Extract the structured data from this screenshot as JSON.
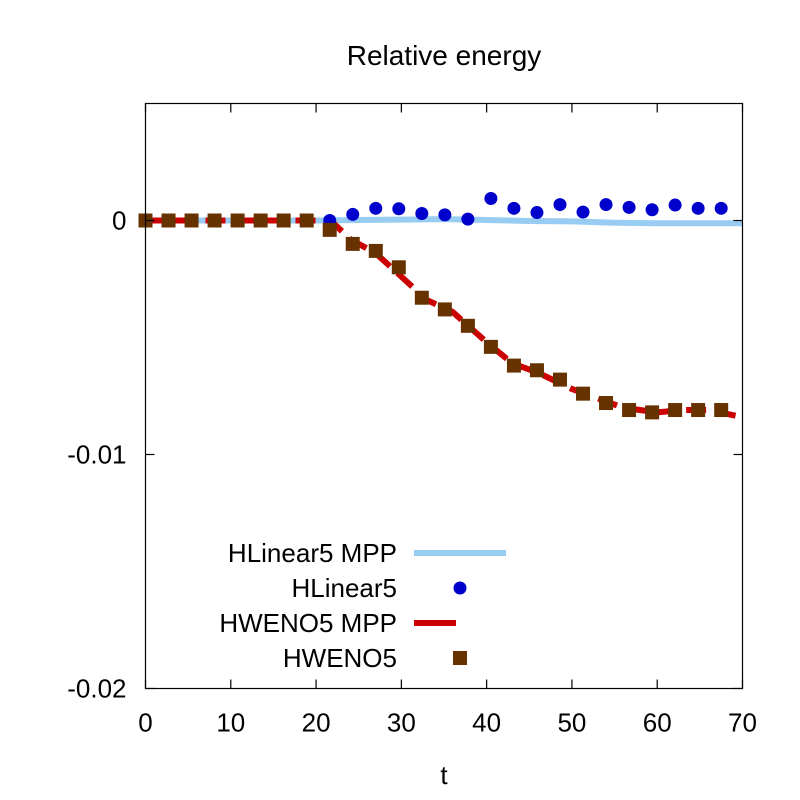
{
  "chart_data": {
    "type": "line",
    "title": "Relative energy",
    "xlabel": "t",
    "ylabel": "",
    "xlim": [
      0,
      70
    ],
    "ylim": [
      -0.02,
      0.005
    ],
    "xticks": [
      0,
      10,
      20,
      30,
      40,
      50,
      60,
      70
    ],
    "xtick_labels": [
      "0",
      "10",
      "20",
      "30",
      "40",
      "50",
      "60",
      "70"
    ],
    "yticks": [
      0,
      -0.01,
      -0.02
    ],
    "ytick_labels": [
      "0",
      "-0.01",
      "-0.02"
    ],
    "grid": false,
    "legend_position": "bottom-left",
    "series": [
      {
        "name": "HLinear5 MPP",
        "style": "line",
        "color": "#99ccf2",
        "x": [
          0,
          10,
          20,
          25,
          30,
          35,
          40,
          45,
          50,
          55,
          60,
          65,
          70
        ],
        "y": [
          0,
          0,
          0,
          2e-05,
          4e-05,
          6e-05,
          2e-05,
          -2e-05,
          -4e-05,
          -0.0001,
          -0.00012,
          -0.00012,
          -0.00012
        ]
      },
      {
        "name": "HLinear5",
        "style": "points-circle",
        "color": "#0000cc",
        "x": [
          0,
          2.7,
          5.4,
          8.1,
          10.8,
          13.5,
          16.2,
          18.9,
          21.6,
          24.3,
          27,
          29.7,
          32.4,
          35.1,
          37.8,
          40.5,
          43.2,
          45.9,
          48.6,
          51.3,
          54,
          56.7,
          59.4,
          62.1,
          64.8,
          67.5
        ],
        "y": [
          0,
          0,
          0,
          0,
          0,
          0,
          0,
          0,
          0,
          0.00026,
          0.00052,
          0.0005,
          0.0003,
          0.00024,
          6e-05,
          0.00094,
          0.00052,
          0.00034,
          0.00068,
          0.00036,
          0.00068,
          0.00056,
          0.00046,
          0.00066,
          0.00052,
          0.00052
        ]
      },
      {
        "name": "HWENO5 MPP",
        "style": "line-dashed",
        "color": "#cc0000",
        "x": [
          0,
          5,
          10,
          15,
          20,
          22,
          24,
          27,
          30,
          33,
          36,
          40,
          43,
          46,
          50,
          53,
          56,
          60,
          63,
          66,
          70
        ],
        "y": [
          0,
          0,
          0,
          0,
          0,
          -0.0001,
          -0.0008,
          -0.0014,
          -0.0024,
          -0.0034,
          -0.0039,
          -0.0052,
          -0.0061,
          -0.0065,
          -0.0072,
          -0.0076,
          -0.008,
          -0.0082,
          -0.0081,
          -0.0081,
          -0.0084
        ]
      },
      {
        "name": "HWENO5",
        "style": "points-square",
        "color": "#663300",
        "x": [
          0,
          2.7,
          5.4,
          8.1,
          10.8,
          13.5,
          16.2,
          18.9,
          21.6,
          24.3,
          27,
          29.7,
          32.4,
          35.1,
          37.8,
          40.5,
          43.2,
          45.9,
          48.6,
          51.3,
          54,
          56.7,
          59.4,
          62.1,
          64.8,
          67.5
        ],
        "y": [
          0,
          0,
          0,
          0,
          0,
          0,
          0,
          0,
          -0.0004,
          -0.001,
          -0.0013,
          -0.002,
          -0.0033,
          -0.0038,
          -0.0045,
          -0.0054,
          -0.0062,
          -0.0064,
          -0.0068,
          -0.0074,
          -0.0078,
          -0.0081,
          -0.0082,
          -0.0081,
          -0.0081,
          -0.0081
        ]
      }
    ]
  }
}
